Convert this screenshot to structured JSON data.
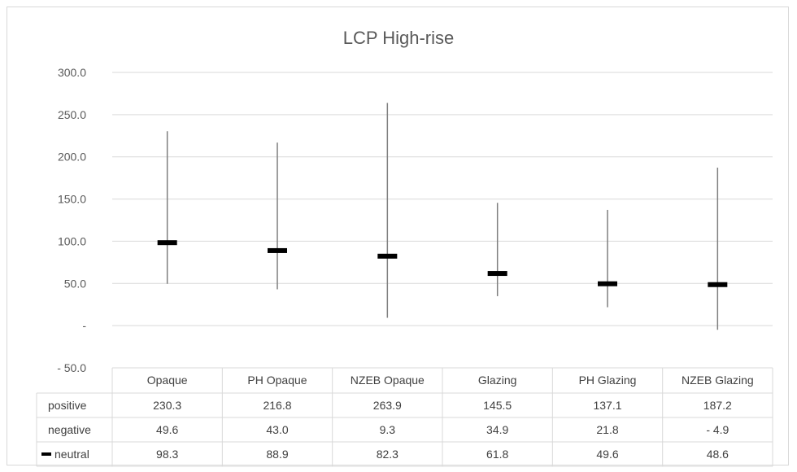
{
  "chart_data": {
    "type": "high-low-close",
    "title": "LCP High-rise",
    "categories": [
      "Opaque",
      "PH Opaque",
      "NZEB Opaque",
      "Glazing",
      "PH Glazing",
      "NZEB Glazing"
    ],
    "series": [
      {
        "name": "positive",
        "values": [
          230.3,
          216.8,
          263.9,
          145.5,
          137.1,
          187.2
        ],
        "display": [
          "230.3",
          "216.8",
          "263.9",
          "145.5",
          "137.1",
          "187.2"
        ]
      },
      {
        "name": "negative",
        "values": [
          49.6,
          43.0,
          9.3,
          34.9,
          21.8,
          -4.9
        ],
        "display": [
          "49.6",
          "43.0",
          "9.3",
          "34.9",
          "21.8",
          "- 4.9"
        ]
      },
      {
        "name": "neutral",
        "values": [
          98.3,
          88.9,
          82.3,
          61.8,
          49.6,
          48.6
        ],
        "display": [
          "98.3",
          "88.9",
          "82.3",
          "61.8",
          "49.6",
          "48.6"
        ]
      }
    ],
    "ylim": [
      -50,
      300
    ],
    "yticks": [
      300,
      250,
      200,
      150,
      100,
      50,
      0,
      -50
    ],
    "ytick_labels": [
      "300.0",
      "250.0",
      "200.0",
      "150.0",
      "100.0",
      "50.0",
      "-",
      "- 50.0"
    ],
    "grid": true,
    "data_table": true,
    "colors": {
      "line": "#7f7f7f",
      "marker": "#000000",
      "grid": "#d9d9d9",
      "text": "#595959"
    }
  }
}
